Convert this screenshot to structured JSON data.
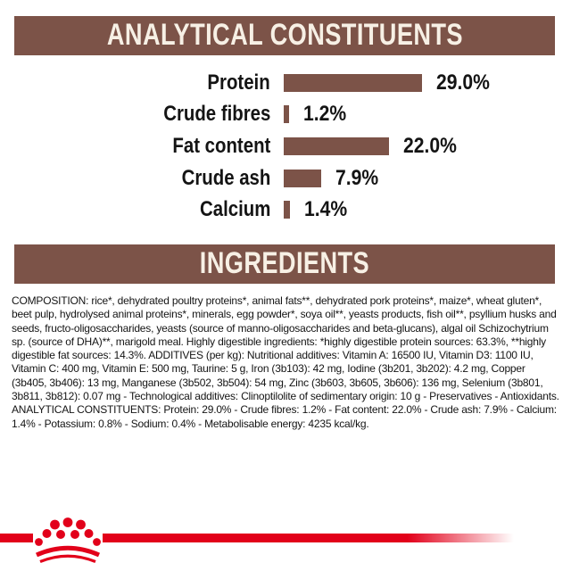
{
  "colors": {
    "brown": "#7c5348",
    "cream": "#f7f0e5",
    "red": "#e2001a",
    "ink": "#141414"
  },
  "sections": {
    "analytical": {
      "title": "ANALYTICAL CONSTITUENTS"
    },
    "ingredients": {
      "title": "INGREDIENTS"
    }
  },
  "chart_data": {
    "type": "bar",
    "orientation": "horizontal",
    "title": "ANALYTICAL CONSTITUENTS",
    "categories": [
      "Protein",
      "Crude fibres",
      "Fat content",
      "Crude ash",
      "Calcium"
    ],
    "values": [
      29.0,
      1.2,
      22.0,
      7.9,
      1.4
    ],
    "value_labels": [
      "29.0%",
      "1.2%",
      "22.0%",
      "7.9%",
      "1.4%"
    ],
    "unit": "%",
    "xlim": [
      0,
      29
    ],
    "grid": false,
    "legend": "none",
    "bar_color": "#7c5348"
  },
  "ingredients_text": "COMPOSITION: rice*, dehydrated poultry proteins*, animal fats**, dehydrated pork proteins*, maize*, wheat gluten*, beet pulp, hydrolysed animal proteins*, minerals, egg powder*, soya oil**, yeasts products, fish oil**, psyllium husks and seeds, fructo-oligosaccharides, yeasts (source of manno-oligosaccharides and beta-glucans), algal oil Schizochytrium sp. (source of DHA)**, marigold meal. Highly digestible ingredients: *highly digestible protein sources: 63.3%, **highly digestible fat sources: 14.3%. ADDITIVES (per kg): Nutritional additives: Vitamin A: 16500 IU, Vitamin D3: 1100 IU, Vitamin C: 400 mg, Vitamin E: 500 mg, Taurine: 5 g, Iron (3b103): 42 mg, Iodine (3b201, 3b202): 4.2 mg, Copper (3b405, 3b406): 13 mg, Manganese (3b502, 3b504): 54 mg, Zinc (3b603, 3b605, 3b606): 136 mg, Selenium (3b801, 3b811, 3b812): 0.07 mg - Technological additives: Clinoptilolite of sedimentary origin: 10 g - Preservatives - Antioxidants. ANALYTICAL CONSTITUENTS: Protein: 29.0% - Crude fibres: 1.2% - Fat content: 22.0% - Crude ash: 7.9% - Calcium: 1.4% - Potassium: 0.8% - Sodium: 0.4% - Metabolisable energy: 4235 kcal/kg.",
  "logo": {
    "name": "royal-canin-crown",
    "color": "#e2001a"
  }
}
